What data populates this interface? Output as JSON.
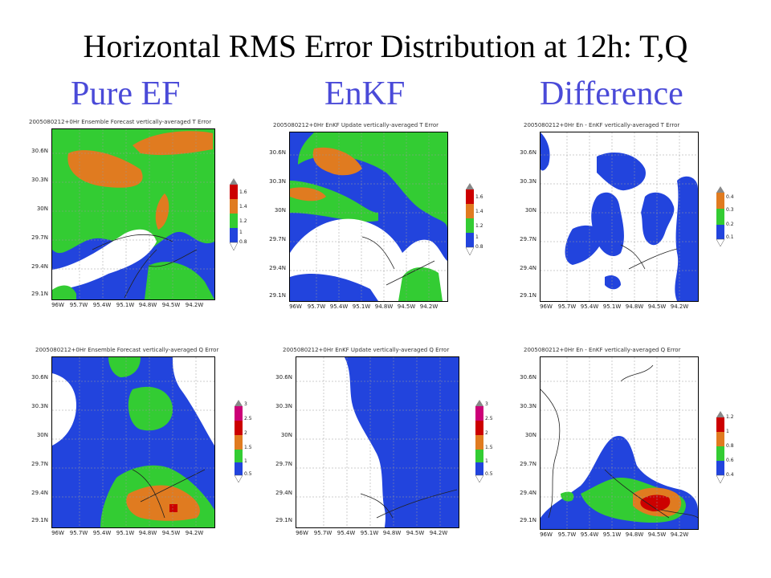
{
  "title": "Horizontal RMS Error Distribution at 12h: T,Q",
  "columns": [
    "Pure EF",
    "EnKF",
    "Difference"
  ],
  "x_ticks": [
    "96W",
    "95.7W",
    "95.4W",
    "95.1W",
    "94.8W",
    "94.5W",
    "94.2W"
  ],
  "y_ticks": [
    "30.6N",
    "30.3N",
    "30N",
    "29.7N",
    "29.4N",
    "29.1N"
  ],
  "panels": [
    {
      "id": "t-ef",
      "title": "2005080212+0Hr Ensemble Forecast vertically-averaged T Error",
      "colorbar": [
        "1.6",
        "1.4",
        "1.2",
        "1",
        "0.8"
      ],
      "colors": [
        "#cc0000",
        "#e07b20",
        "#33cc33",
        "#2244dd"
      ]
    },
    {
      "id": "t-enkf",
      "title": "2005080212+0Hr EnKF Update vertically-averaged T Error",
      "colorbar": [
        "1.6",
        "1.4",
        "1.2",
        "1",
        "0.8"
      ],
      "colors": [
        "#cc0000",
        "#e07b20",
        "#33cc33",
        "#2244dd"
      ]
    },
    {
      "id": "t-diff",
      "title": "2005080212+0Hr En - EnKF vertically-averaged T Error",
      "colorbar": [
        "0.4",
        "0.3",
        "0.2",
        "0.1"
      ],
      "colors": [
        "#e07b20",
        "#33cc33",
        "#2244dd"
      ]
    },
    {
      "id": "q-ef",
      "title": "2005080212+0Hr Ensemble Forecast vertically-averaged Q Error",
      "colorbar": [
        "3",
        "2.5",
        "2",
        "1.5",
        "1",
        "0.5"
      ],
      "colors": [
        "#cc0077",
        "#cc0000",
        "#e07b20",
        "#33cc33",
        "#2244dd"
      ]
    },
    {
      "id": "q-enkf",
      "title": "2005080212+0Hr EnKF Update vertically-averaged Q Error",
      "colorbar": [
        "3",
        "2.5",
        "2",
        "1.5",
        "1",
        "0.5"
      ],
      "colors": [
        "#cc0077",
        "#cc0000",
        "#e07b20",
        "#33cc33",
        "#2244dd"
      ]
    },
    {
      "id": "q-diff",
      "title": "2005080212+0Hr En - EnKF vertically-averaged Q Error",
      "colorbar": [
        "1.2",
        "1",
        "0.8",
        "0.6",
        "0.4"
      ],
      "colors": [
        "#cc0000",
        "#e07b20",
        "#33cc33",
        "#2244dd"
      ]
    }
  ],
  "colors": {
    "title": "#000000",
    "column_label": "#4a4ad8",
    "blue": "#2244dd",
    "green": "#33cc33",
    "orange": "#e07b20",
    "red": "#cc0000"
  }
}
